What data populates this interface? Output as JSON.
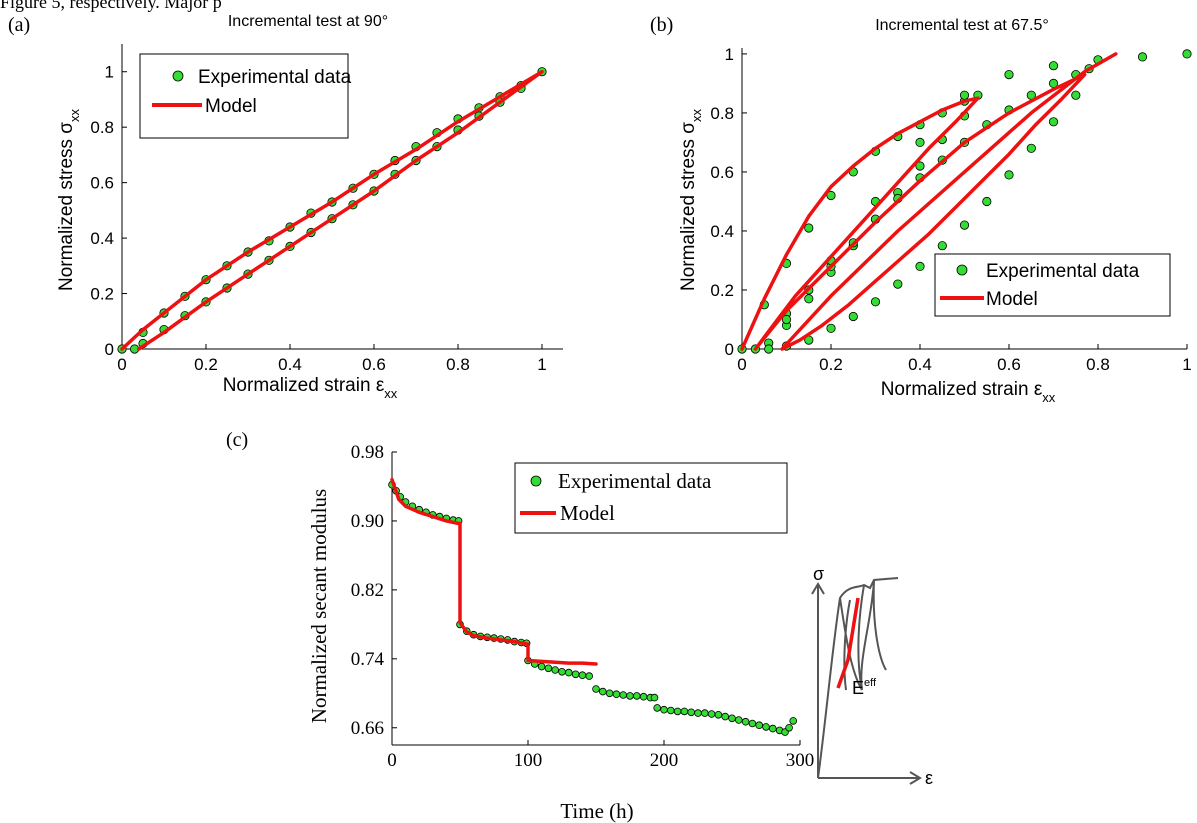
{
  "top_caption": "Figure 5, respectively. Major p",
  "colors": {
    "experimental": "#33dd33",
    "experimental_edge": "#000000",
    "model": "#ee1111",
    "axis": "#000000"
  },
  "chart_data": [
    {
      "panel": "(a)",
      "type": "scatter",
      "title": "Incremental test at 90°",
      "xlabel": "Normalized strain",
      "xlabel_symbol": "ε",
      "xlabel_sub": "xx",
      "ylabel": "Normalized stress",
      "ylabel_symbol": "σ",
      "ylabel_sub": "xx",
      "xlim": [
        0,
        1.05
      ],
      "ylim": [
        0,
        1.1
      ],
      "xticks": [
        0,
        0.2,
        0.4,
        0.6,
        0.8,
        1
      ],
      "yticks": [
        0,
        0.2,
        0.4,
        0.6,
        0.8,
        1
      ],
      "xtick_labels": [
        "0",
        "0.2",
        "0.4",
        "0.6",
        "0.8",
        "1"
      ],
      "ytick_labels": [
        "0",
        "0.2",
        "0.4",
        "0.6",
        "0.8",
        "1"
      ],
      "legend": {
        "position": "top-left",
        "entries": [
          "Experimental data",
          "Model"
        ]
      },
      "series": [
        {
          "name": "Experimental data",
          "style": "markers",
          "x": [
            0,
            0.05,
            0.1,
            0.15,
            0.2,
            0.25,
            0.3,
            0.35,
            0.4,
            0.45,
            0.5,
            0.55,
            0.6,
            0.65,
            0.7,
            0.75,
            0.8,
            0.85,
            0.9,
            0.95,
            1.0,
            0.95,
            0.9,
            0.85,
            0.8,
            0.75,
            0.7,
            0.65,
            0.6,
            0.55,
            0.5,
            0.45,
            0.4,
            0.35,
            0.3,
            0.25,
            0.2,
            0.15,
            0.1,
            0.05,
            0.03
          ],
          "y": [
            0,
            0.06,
            0.13,
            0.19,
            0.25,
            0.3,
            0.35,
            0.39,
            0.44,
            0.49,
            0.53,
            0.58,
            0.63,
            0.68,
            0.73,
            0.78,
            0.83,
            0.87,
            0.91,
            0.95,
            1.0,
            0.94,
            0.89,
            0.84,
            0.79,
            0.73,
            0.68,
            0.63,
            0.57,
            0.52,
            0.47,
            0.42,
            0.37,
            0.32,
            0.27,
            0.22,
            0.17,
            0.12,
            0.07,
            0.02,
            0
          ]
        },
        {
          "name": "Model",
          "style": "line",
          "x": [
            0,
            0.05,
            0.1,
            0.2,
            0.3,
            0.4,
            0.5,
            0.6,
            0.7,
            0.8,
            0.9,
            1.0,
            0.9,
            0.8,
            0.7,
            0.6,
            0.5,
            0.4,
            0.3,
            0.2,
            0.1,
            0.04
          ],
          "y": [
            0,
            0.07,
            0.13,
            0.25,
            0.35,
            0.44,
            0.53,
            0.63,
            0.72,
            0.82,
            0.91,
            1.0,
            0.89,
            0.78,
            0.68,
            0.57,
            0.47,
            0.37,
            0.27,
            0.17,
            0.06,
            0
          ]
        }
      ]
    },
    {
      "panel": "(b)",
      "type": "scatter",
      "title": "Incremental test at 67.5°",
      "xlabel": "Normalized strain",
      "xlabel_symbol": "ε",
      "xlabel_sub": "xx",
      "ylabel": "Normalized stress",
      "ylabel_symbol": "σ",
      "ylabel_sub": "xx",
      "xlim": [
        0,
        1
      ],
      "ylim": [
        0,
        1.02
      ],
      "xticks": [
        0,
        0.2,
        0.4,
        0.6,
        0.8,
        1
      ],
      "yticks": [
        0,
        0.2,
        0.4,
        0.6,
        0.8,
        1
      ],
      "xtick_labels": [
        "0",
        "0.2",
        "0.4",
        "0.6",
        "0.8",
        "1"
      ],
      "ytick_labels": [
        "0",
        "0.2",
        "0.4",
        "0.6",
        "0.8",
        "1"
      ],
      "legend": {
        "position": "bottom-right",
        "entries": [
          "Experimental data",
          "Model"
        ]
      },
      "series": [
        {
          "name": "Experimental data",
          "style": "markers",
          "x": [
            0,
            0.05,
            0.1,
            0.15,
            0.2,
            0.25,
            0.3,
            0.35,
            0.4,
            0.45,
            0.5,
            0.53,
            0.5,
            0.45,
            0.4,
            0.35,
            0.3,
            0.25,
            0.2,
            0.15,
            0.1,
            0.06,
            0.03,
            0.1,
            0.15,
            0.2,
            0.25,
            0.3,
            0.35,
            0.4,
            0.45,
            0.5,
            0.55,
            0.6,
            0.65,
            0.7,
            0.75,
            0.78,
            0.75,
            0.7,
            0.65,
            0.6,
            0.55,
            0.5,
            0.45,
            0.4,
            0.35,
            0.3,
            0.25,
            0.2,
            0.15,
            0.1,
            0.06,
            0.1,
            0.2,
            0.3,
            0.4,
            0.5,
            0.6,
            0.7,
            0.8,
            0.9,
            1.0
          ],
          "y": [
            0,
            0.15,
            0.29,
            0.41,
            0.52,
            0.6,
            0.67,
            0.72,
            0.76,
            0.8,
            0.84,
            0.86,
            0.79,
            0.71,
            0.62,
            0.53,
            0.44,
            0.35,
            0.26,
            0.17,
            0.08,
            0.02,
            0,
            0.12,
            0.2,
            0.28,
            0.36,
            0.44,
            0.51,
            0.58,
            0.64,
            0.7,
            0.76,
            0.81,
            0.86,
            0.9,
            0.93,
            0.95,
            0.86,
            0.77,
            0.68,
            0.59,
            0.5,
            0.42,
            0.35,
            0.28,
            0.22,
            0.16,
            0.11,
            0.07,
            0.03,
            0.01,
            0,
            0.1,
            0.3,
            0.5,
            0.7,
            0.86,
            0.93,
            0.96,
            0.98,
            0.99,
            1.0
          ]
        },
        {
          "name": "Model",
          "style": "line",
          "x": [
            0,
            0.05,
            0.1,
            0.15,
            0.2,
            0.25,
            0.3,
            0.35,
            0.4,
            0.45,
            0.5,
            0.53,
            0.48,
            0.42,
            0.36,
            0.3,
            0.24,
            0.18,
            0.12,
            0.07,
            0.03,
            0.1,
            0.2,
            0.3,
            0.4,
            0.5,
            0.6,
            0.7,
            0.77,
            0.72,
            0.66,
            0.6,
            0.54,
            0.48,
            0.42,
            0.36,
            0.3,
            0.24,
            0.18,
            0.13,
            0.09,
            0.2,
            0.35,
            0.5,
            0.65,
            0.77,
            0.84
          ],
          "y": [
            0,
            0.17,
            0.32,
            0.45,
            0.55,
            0.62,
            0.68,
            0.73,
            0.77,
            0.81,
            0.84,
            0.85,
            0.77,
            0.68,
            0.58,
            0.48,
            0.38,
            0.28,
            0.18,
            0.08,
            0,
            0.13,
            0.28,
            0.43,
            0.57,
            0.7,
            0.8,
            0.88,
            0.93,
            0.85,
            0.76,
            0.66,
            0.57,
            0.48,
            0.39,
            0.31,
            0.23,
            0.15,
            0.08,
            0.03,
            0,
            0.18,
            0.4,
            0.6,
            0.8,
            0.94,
            1.0
          ]
        }
      ]
    },
    {
      "panel": "(c)",
      "type": "scatter",
      "title": "",
      "xlabel": "Time (h)",
      "ylabel": "Normalized secant modulus",
      "xlim": [
        0,
        300
      ],
      "ylim": [
        0.64,
        0.98
      ],
      "xticks": [
        0,
        100,
        200,
        300
      ],
      "yticks": [
        0.66,
        0.74,
        0.82,
        0.9,
        0.98
      ],
      "xtick_labels": [
        "0",
        "100",
        "200",
        "300"
      ],
      "ytick_labels": [
        "0.66",
        "0.74",
        "0.82",
        "0.90",
        "0.98"
      ],
      "legend": {
        "position": "top-center",
        "entries": [
          "Experimental data",
          "Model"
        ]
      },
      "series": [
        {
          "name": "Experimental data",
          "style": "markers",
          "x": [
            0,
            3,
            6,
            10,
            15,
            20,
            25,
            30,
            35,
            40,
            45,
            49,
            50,
            55,
            60,
            65,
            70,
            75,
            80,
            85,
            90,
            95,
            99,
            100,
            105,
            110,
            115,
            120,
            125,
            130,
            135,
            140,
            145,
            150,
            155,
            160,
            165,
            170,
            175,
            180,
            185,
            190,
            193,
            195,
            200,
            205,
            210,
            215,
            220,
            225,
            230,
            235,
            240,
            245,
            250,
            255,
            260,
            265,
            270,
            275,
            280,
            285,
            289,
            292,
            295
          ],
          "y": [
            0.942,
            0.935,
            0.928,
            0.922,
            0.917,
            0.913,
            0.91,
            0.907,
            0.905,
            0.903,
            0.901,
            0.9,
            0.78,
            0.772,
            0.768,
            0.766,
            0.765,
            0.764,
            0.763,
            0.762,
            0.76,
            0.759,
            0.758,
            0.738,
            0.734,
            0.731,
            0.729,
            0.727,
            0.725,
            0.724,
            0.722,
            0.721,
            0.72,
            0.705,
            0.702,
            0.7,
            0.699,
            0.698,
            0.697,
            0.697,
            0.696,
            0.695,
            0.695,
            0.683,
            0.681,
            0.68,
            0.679,
            0.679,
            0.678,
            0.677,
            0.677,
            0.676,
            0.675,
            0.673,
            0.671,
            0.669,
            0.667,
            0.665,
            0.663,
            0.661,
            0.659,
            0.657,
            0.655,
            0.66,
            0.668
          ]
        },
        {
          "name": "Model",
          "style": "line",
          "x": [
            0,
            5,
            10,
            20,
            30,
            40,
            49,
            50,
            50,
            55,
            60,
            70,
            80,
            90,
            100,
            100,
            110,
            120,
            130,
            140,
            150
          ],
          "y": [
            0.948,
            0.925,
            0.917,
            0.91,
            0.905,
            0.9,
            0.897,
            0.897,
            0.782,
            0.771,
            0.767,
            0.764,
            0.762,
            0.76,
            0.757,
            0.738,
            0.737,
            0.736,
            0.735,
            0.735,
            0.734
          ]
        }
      ]
    }
  ],
  "inset": {
    "y_label": "σ",
    "x_label": "ε",
    "curve_label": "E",
    "curve_label_sup": "eff"
  }
}
